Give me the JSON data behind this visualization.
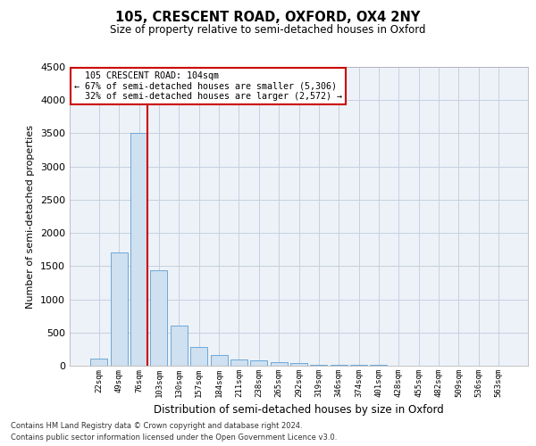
{
  "title": "105, CRESCENT ROAD, OXFORD, OX4 2NY",
  "subtitle": "Size of property relative to semi-detached houses in Oxford",
  "xlabel": "Distribution of semi-detached houses by size in Oxford",
  "ylabel": "Number of semi-detached properties",
  "bar_color": "#cfe0f0",
  "bar_edge_color": "#5a9fd4",
  "grid_color": "#c5d0e0",
  "background_color": "#edf2f8",
  "categories": [
    "22sqm",
    "49sqm",
    "76sqm",
    "103sqm",
    "130sqm",
    "157sqm",
    "184sqm",
    "211sqm",
    "238sqm",
    "265sqm",
    "292sqm",
    "319sqm",
    "346sqm",
    "374sqm",
    "401sqm",
    "428sqm",
    "455sqm",
    "482sqm",
    "509sqm",
    "536sqm",
    "563sqm"
  ],
  "values": [
    110,
    1700,
    3500,
    1440,
    610,
    280,
    155,
    100,
    80,
    55,
    40,
    20,
    15,
    10,
    8,
    5,
    4,
    3,
    2,
    2,
    1
  ],
  "ylim": [
    0,
    4500
  ],
  "yticks": [
    0,
    500,
    1000,
    1500,
    2000,
    2500,
    3000,
    3500,
    4000,
    4500
  ],
  "property_label": "105 CRESCENT ROAD: 104sqm",
  "pct_smaller": 67,
  "pct_smaller_count": 5306,
  "pct_larger": 32,
  "pct_larger_count": 2572,
  "annotation_box_color": "#ffffff",
  "annotation_box_edge": "#cc0000",
  "line_color": "#cc0000",
  "footer_line1": "Contains HM Land Registry data © Crown copyright and database right 2024.",
  "footer_line2": "Contains public sector information licensed under the Open Government Licence v3.0."
}
